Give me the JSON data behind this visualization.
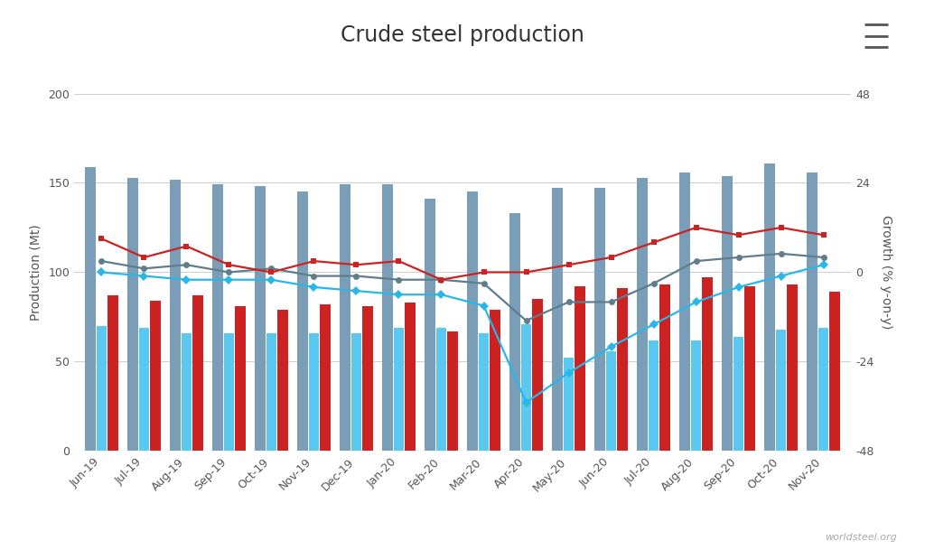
{
  "title": "Crude steel production",
  "categories": [
    "Jun-19",
    "Jul-19",
    "Aug-19",
    "Sep-19",
    "Oct-19",
    "Nov-19",
    "Dec-19",
    "Jan-20",
    "Feb-20",
    "Mar-20",
    "Apr-20",
    "May-20",
    "Jun-20",
    "Jul-20",
    "Aug-20",
    "Sep-20",
    "Oct-20",
    "Nov-20"
  ],
  "world_mt": [
    159,
    153,
    152,
    149,
    148,
    145,
    149,
    149,
    141,
    145,
    133,
    147,
    147,
    153,
    156,
    154,
    161,
    156
  ],
  "row_mt": [
    70,
    69,
    66,
    66,
    66,
    66,
    66,
    69,
    69,
    66,
    71,
    52,
    56,
    62,
    62,
    64,
    68,
    69
  ],
  "china_mt": [
    87,
    84,
    87,
    81,
    79,
    82,
    81,
    83,
    67,
    79,
    85,
    92,
    91,
    93,
    97,
    92,
    93,
    89
  ],
  "world_pct": [
    3,
    1,
    2,
    0,
    1,
    -1,
    -1,
    -2,
    -2,
    -3,
    -13,
    -8,
    -8,
    -3,
    3,
    4,
    5,
    4
  ],
  "row_pct": [
    0,
    -1,
    -2,
    -2,
    -2,
    -4,
    -5,
    -6,
    -6,
    -9,
    -35,
    -27,
    -20,
    -14,
    -8,
    -4,
    -1,
    2
  ],
  "china_pct": [
    9,
    4,
    7,
    2,
    0,
    3,
    2,
    3,
    -2,
    0,
    0,
    2,
    4,
    8,
    12,
    10,
    12,
    10
  ],
  "ylabel_left": "Production (Mt)",
  "ylabel_right": "Growth (% y-on-y)",
  "ylim_left": [
    0,
    200
  ],
  "ylim_right": [
    -48,
    48
  ],
  "yticks_left": [
    0,
    50,
    100,
    150,
    200
  ],
  "yticks_right": [
    -48,
    -24,
    0,
    24,
    48
  ],
  "world_bar_color": "#7b9eb8",
  "row_bar_color": "#5bc8f0",
  "china_bar_color": "#cc2222",
  "world_line_color": "#607d8b",
  "row_line_color": "#29b6e8",
  "china_line_color": "#cc2222",
  "bg_color": "#ffffff",
  "grid_color": "#d0d0d0",
  "title_fontsize": 17,
  "axis_label_fontsize": 10,
  "tick_fontsize": 9,
  "legend_fontsize": 10
}
